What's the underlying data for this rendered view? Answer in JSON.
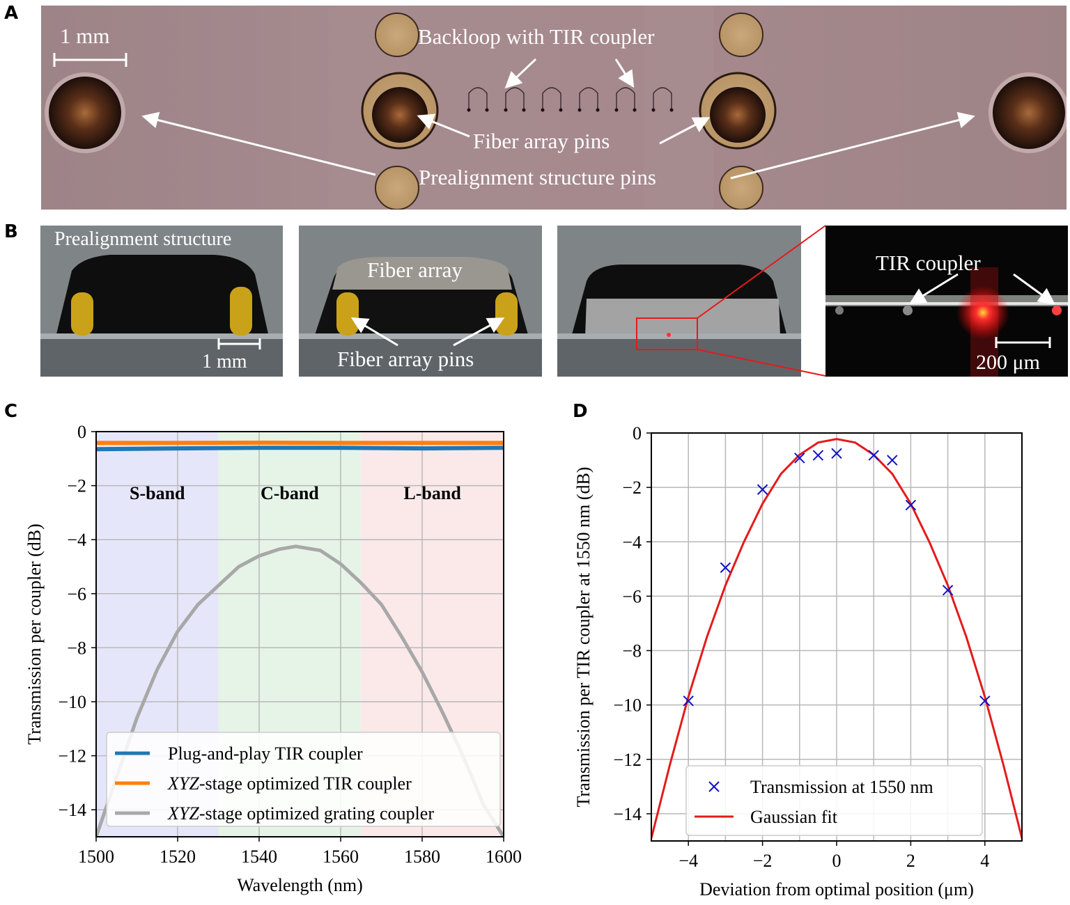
{
  "panels": {
    "A": {
      "letter": "A",
      "scale_bar": "1 mm",
      "labels": {
        "backloop": "Backloop with TIR coupler",
        "fiber_pins": "Fiber array pins",
        "prealign_pins": "Prealignment structure pins"
      }
    },
    "B": {
      "letter": "B",
      "img1": {
        "label": "Prealignment structure",
        "scale": "1 mm"
      },
      "img2": {
        "label": "Fiber array",
        "pins": "Fiber array pins"
      },
      "img4": {
        "label": "TIR coupler",
        "scale": "200 μm"
      }
    },
    "C": {
      "letter": "C"
    },
    "D": {
      "letter": "D"
    }
  },
  "colors": {
    "blue": "#1f77b4",
    "orange": "#ff7f0e",
    "gray": "#a8a8a8",
    "red": "#e41a1c",
    "cross": "#1010cc"
  },
  "chart_data": [
    {
      "type": "line",
      "panel": "C",
      "xlabel": "Wavelength (nm)",
      "ylabel": "Transmission per coupler (dB)",
      "xlim": [
        1500,
        1600
      ],
      "ylim": [
        -15,
        0
      ],
      "xticks": [
        1500,
        1520,
        1540,
        1560,
        1580,
        1600
      ],
      "yticks": [
        0,
        -2,
        -4,
        -6,
        -8,
        -10,
        -12,
        -14
      ],
      "bands": [
        {
          "name": "S-band",
          "range": [
            1500,
            1530
          ],
          "color": "#e6e6fb"
        },
        {
          "name": "C-band",
          "range": [
            1530,
            1565
          ],
          "color": "#e6f4e8"
        },
        {
          "name": "L-band",
          "range": [
            1565,
            1600
          ],
          "color": "#fbe9ea"
        }
      ],
      "series": [
        {
          "name": "Plug-and-play TIR coupler",
          "color": "#1f77b4",
          "x": [
            1500,
            1520,
            1540,
            1560,
            1580,
            1600
          ],
          "y": [
            -0.65,
            -0.62,
            -0.6,
            -0.6,
            -0.62,
            -0.6
          ]
        },
        {
          "name": "XYZ-stage optimized TIR coupler",
          "color": "#ff7f0e",
          "x": [
            1500,
            1520,
            1540,
            1560,
            1580,
            1600
          ],
          "y": [
            -0.42,
            -0.42,
            -0.41,
            -0.42,
            -0.42,
            -0.42
          ]
        },
        {
          "name": "XYZ-stage optimized grating coupler",
          "color": "#a8a8a8",
          "x": [
            1500,
            1505,
            1510,
            1515,
            1520,
            1525,
            1530,
            1535,
            1540,
            1545,
            1549,
            1555,
            1560,
            1565,
            1570,
            1575,
            1580,
            1585,
            1590,
            1595,
            1600
          ],
          "y": [
            -15.0,
            -12.8,
            -10.6,
            -8.8,
            -7.4,
            -6.4,
            -5.7,
            -5.0,
            -4.6,
            -4.35,
            -4.25,
            -4.4,
            -4.9,
            -5.6,
            -6.4,
            -7.6,
            -8.9,
            -10.4,
            -12.0,
            -13.8,
            -15.0
          ]
        }
      ],
      "legend": {
        "placement": "lower-left",
        "entries": [
          "Plug-and-play TIR coupler",
          "XYZ-stage optimized TIR coupler",
          "XYZ-stage optimized grating coupler"
        ]
      }
    },
    {
      "type": "scatter",
      "panel": "D",
      "xlabel": "Deviation from optimal position (μm)",
      "ylabel": "Transmission per TIR coupler at 1550 nm (dB)",
      "xlim": [
        -5,
        5
      ],
      "ylim": [
        -15,
        0
      ],
      "xticks": [
        -4,
        -2,
        0,
        2,
        4
      ],
      "yticks": [
        0,
        -2,
        -4,
        -6,
        -8,
        -10,
        -12,
        -14
      ],
      "series": [
        {
          "name": "Transmission at 1550 nm",
          "marker": "x",
          "color": "#1010cc",
          "x": [
            -4,
            -3,
            -2,
            -1,
            -0.5,
            0,
            1,
            1.5,
            2,
            3,
            4
          ],
          "y": [
            -9.85,
            -4.95,
            -2.08,
            -0.92,
            -0.82,
            -0.75,
            -0.82,
            -1.0,
            -2.65,
            -5.78,
            -9.85
          ]
        },
        {
          "name": "Gaussian fit",
          "type": "line",
          "color": "#e41a1c",
          "x": [
            -5,
            -4.5,
            -4,
            -3.5,
            -3,
            -2.5,
            -2,
            -1.5,
            -1,
            -0.5,
            0,
            0.5,
            1,
            1.5,
            2,
            2.5,
            3,
            3.5,
            4,
            4.5,
            5
          ],
          "y": [
            -14.9,
            -12.2,
            -9.7,
            -7.5,
            -5.6,
            -4.0,
            -2.6,
            -1.5,
            -0.8,
            -0.35,
            -0.22,
            -0.35,
            -0.8,
            -1.5,
            -2.6,
            -4.0,
            -5.6,
            -7.5,
            -9.7,
            -12.2,
            -14.9
          ]
        }
      ],
      "legend": {
        "placement": "lower-center",
        "entries": [
          "Transmission at 1550 nm",
          "Gaussian fit"
        ]
      }
    }
  ]
}
